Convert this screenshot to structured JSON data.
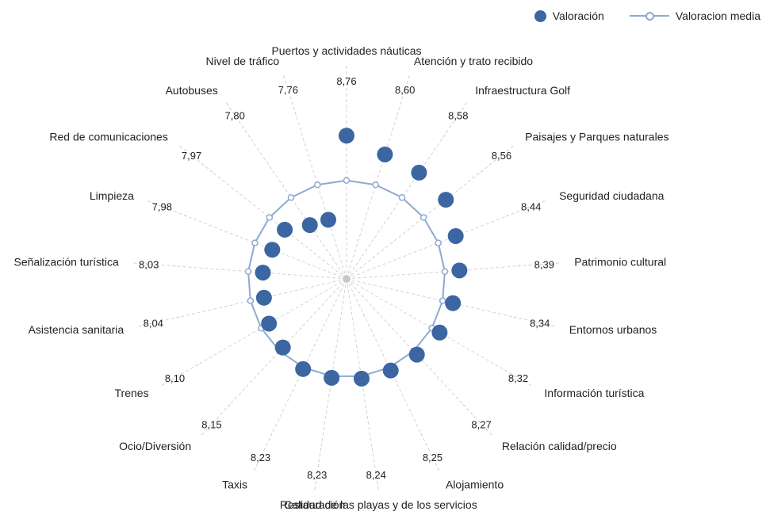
{
  "legend": {
    "valoracion_label": "Valoración",
    "media_label": "Valoracion media"
  },
  "colors": {
    "valoracion": "#3b66a2",
    "media_line": "#8faad0",
    "spoke": "#d3d3d3",
    "leader": "#cfcfcf"
  },
  "chart_data": {
    "type": "radar",
    "center_marker": "gray-dot",
    "categories": [
      "Puertos y actividades náuticas",
      "Atención y trato recibido",
      "Infraestructura Golf",
      "Paisajes y Parques naturales",
      "Seguridad ciudadana",
      "Patrimonio cultural",
      "Entornos urbanos",
      "Información turística",
      "Relación calidad/precio",
      "Alojamiento",
      "Calidad de las playas y de los servicios",
      "Restauración",
      "Taxis",
      "Ocio/Diversión",
      "Trenes",
      "Asistencia sanitaria",
      "Señalización turística",
      "Limpieza",
      "Red de comunicaciones",
      "Autobuses",
      "Nivel de tráfico"
    ],
    "value_labels": [
      "8,76",
      "8,60",
      "8,58",
      "8,56",
      "8,44",
      "8,39",
      "8,34",
      "8,32",
      "8,27",
      "8,25",
      "8,24",
      "8,23",
      "8,23",
      "8,15",
      "8,10",
      "8,04",
      "8,03",
      "7,98",
      "7,97",
      "7,80",
      "7,76"
    ],
    "series": [
      {
        "name": "Valoración",
        "style": "markers",
        "values": [
          8.76,
          8.6,
          8.58,
          8.56,
          8.44,
          8.39,
          8.34,
          8.32,
          8.27,
          8.25,
          8.24,
          8.23,
          8.23,
          8.15,
          8.1,
          8.04,
          8.03,
          7.98,
          7.97,
          7.8,
          7.76
        ]
      },
      {
        "name": "Valoracion media",
        "style": "line-with-markers",
        "values": [
          8.21,
          8.21,
          8.21,
          8.21,
          8.21,
          8.21,
          8.21,
          8.21,
          8.21,
          8.21,
          8.21,
          8.21,
          8.21,
          8.21,
          8.21,
          8.21,
          8.21,
          8.21,
          8.21,
          8.21,
          8.21
        ]
      }
    ],
    "radial_range": [
      7.0,
      8.85
    ],
    "grid": false,
    "legend_position": "top-right"
  }
}
